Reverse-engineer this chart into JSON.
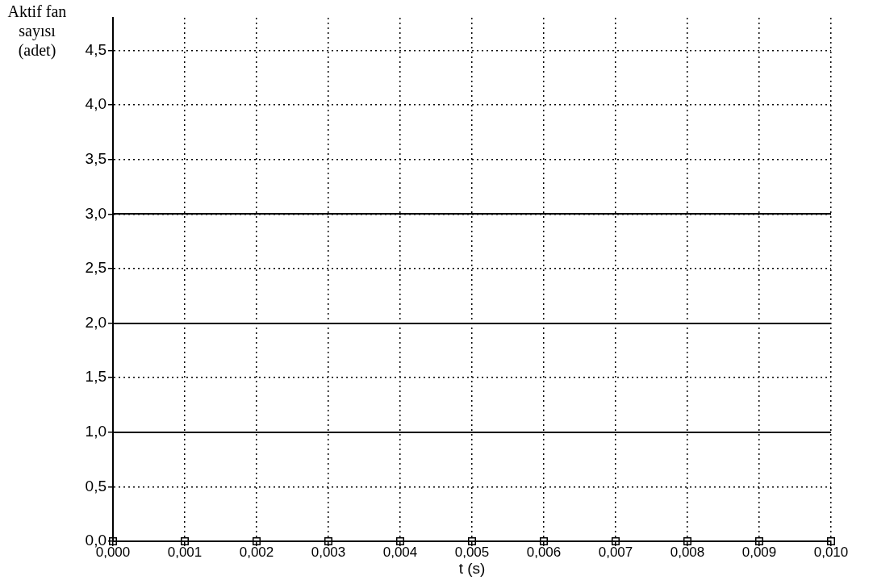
{
  "chart_data": {
    "type": "line",
    "xlabel": "t (s)",
    "ylabel": "Aktif fan sayısı (adet)",
    "x": [
      0,
      0.001,
      0.002,
      0.003,
      0.004,
      0.005,
      0.006,
      0.007,
      0.008,
      0.009,
      0.01
    ],
    "series": [
      {
        "color": "#000000",
        "values": [
          0,
          0,
          0,
          0,
          0,
          0,
          0,
          0,
          0,
          0,
          0
        ]
      }
    ],
    "xlim": [
      0,
      0.01
    ],
    "xticks": [
      {
        "value": 0,
        "label": "0,000"
      },
      {
        "value": 0.001,
        "label": "0,001"
      },
      {
        "value": 0.002,
        "label": "0,002"
      },
      {
        "value": 0.003,
        "label": "0,003"
      },
      {
        "value": 0.004,
        "label": "0,004"
      },
      {
        "value": 0.005,
        "label": "0,005"
      },
      {
        "value": 0.006,
        "label": "0,006"
      },
      {
        "value": 0.007,
        "label": "0,007"
      },
      {
        "value": 0.008,
        "label": "0,008"
      },
      {
        "value": 0.009,
        "label": "0,009"
      },
      {
        "value": 0.01,
        "label": "0,010"
      }
    ],
    "ylim": [
      0,
      4.8
    ],
    "yticks": [
      {
        "value": 0,
        "label": "0,0"
      },
      {
        "value": 0.5,
        "label": "0,5"
      },
      {
        "value": 1,
        "label": "1,0"
      },
      {
        "value": 1.5,
        "label": "1,5"
      },
      {
        "value": 2,
        "label": "2,0"
      },
      {
        "value": 2.5,
        "label": "2,5"
      },
      {
        "value": 3,
        "label": "3,0"
      },
      {
        "value": 3.5,
        "label": "3,5"
      },
      {
        "value": 4,
        "label": "4,0"
      },
      {
        "value": 4.5,
        "label": "4,5"
      }
    ],
    "ref_lines": [
      {
        "axis": "y",
        "value": 1,
        "color": "#000000"
      },
      {
        "axis": "y",
        "value": 2,
        "color": "#000000"
      },
      {
        "axis": "y",
        "value": 3,
        "color": "#000000"
      }
    ],
    "grid": true,
    "legend": false,
    "marker": "square"
  }
}
